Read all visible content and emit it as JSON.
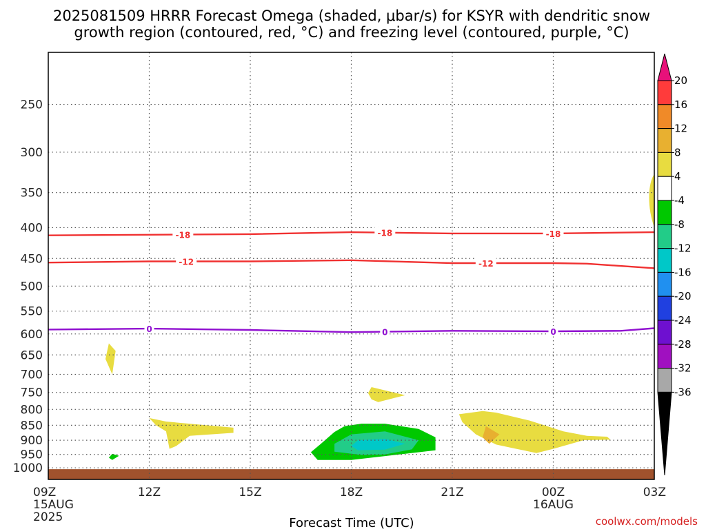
{
  "chart_data": {
    "type": "time-height contour",
    "title_line1": "2025081509 HRRR Forecast Omega (shaded, μbar/s) for KSYR with dendritic snow",
    "title_line2": "growth region (contoured, red, °C) and freezing level (contoured, purple, °C)",
    "xlabel": "Forecast Time (UTC)",
    "x_ticks": [
      {
        "hour": 0,
        "label": "09Z",
        "sub": [
          "15AUG",
          "2025"
        ]
      },
      {
        "hour": 3,
        "label": "12Z",
        "sub": []
      },
      {
        "hour": 6,
        "label": "15Z",
        "sub": []
      },
      {
        "hour": 9,
        "label": "18Z",
        "sub": []
      },
      {
        "hour": 12,
        "label": "21Z",
        "sub": []
      },
      {
        "hour": 15,
        "label": "00Z",
        "sub": [
          "16AUG"
        ]
      },
      {
        "hour": 18,
        "label": "03Z",
        "sub": []
      }
    ],
    "y_ticks": [
      250,
      300,
      350,
      400,
      450,
      500,
      550,
      600,
      650,
      700,
      750,
      800,
      850,
      900,
      950,
      1000
    ],
    "y_axis_log": true,
    "grid": true,
    "colorbar": {
      "labels": [
        "20",
        "16",
        "12",
        "8",
        "4",
        "-4",
        "-8",
        "-12",
        "-16",
        "-20",
        "-24",
        "-28",
        "-32",
        "-36"
      ],
      "colors": [
        "#ff3b3b",
        "#f08a28",
        "#e8b030",
        "#e8dc40",
        "#ffffff",
        "#00c800",
        "#22cc88",
        "#00c8c8",
        "#2090f0",
        "#2040e0",
        "#6e10d0",
        "#a010c0",
        "#a8a8a8"
      ],
      "top_color": "#e8117a",
      "bottom_color": "#000000"
    },
    "contours": [
      {
        "name": "-18",
        "color": "#f03030",
        "points": [
          [
            0,
            412
          ],
          [
            3,
            411
          ],
          [
            6,
            410
          ],
          [
            9,
            407
          ],
          [
            12,
            409
          ],
          [
            15,
            409
          ],
          [
            18,
            407
          ]
        ],
        "labels": [
          [
            4.0,
            412
          ],
          [
            10.0,
            407
          ],
          [
            15.0,
            409
          ]
        ]
      },
      {
        "name": "-12",
        "color": "#f03030",
        "points": [
          [
            0,
            457
          ],
          [
            3,
            455
          ],
          [
            6,
            455
          ],
          [
            9,
            453
          ],
          [
            12,
            458
          ],
          [
            15,
            458
          ],
          [
            16,
            459
          ],
          [
            18,
            467
          ]
        ],
        "labels": [
          [
            4.1,
            455
          ],
          [
            13.0,
            458
          ]
        ]
      },
      {
        "name": "0",
        "color": "#9010d0",
        "points": [
          [
            0,
            590
          ],
          [
            3,
            588
          ],
          [
            6,
            591
          ],
          [
            9,
            596
          ],
          [
            12,
            593
          ],
          [
            15,
            594
          ],
          [
            17,
            593
          ],
          [
            18,
            587
          ]
        ],
        "labels": [
          [
            3.0,
            588
          ],
          [
            10.0,
            596
          ],
          [
            15.0,
            594
          ]
        ]
      }
    ],
    "regions": [
      {
        "value": 6,
        "points": [
          [
            1.8,
            622
          ],
          [
            2.0,
            640
          ],
          [
            1.9,
            700
          ],
          [
            1.7,
            660
          ],
          [
            1.8,
            622
          ]
        ]
      },
      {
        "value": 6,
        "points": [
          [
            3.0,
            827
          ],
          [
            3.5,
            838
          ],
          [
            5.5,
            858
          ],
          [
            5.5,
            875
          ],
          [
            4.2,
            885
          ],
          [
            3.8,
            920
          ],
          [
            3.6,
            930
          ],
          [
            3.5,
            870
          ],
          [
            3.2,
            850
          ],
          [
            3.0,
            827
          ]
        ]
      },
      {
        "value": 6,
        "points": [
          [
            9.6,
            735
          ],
          [
            10.6,
            758
          ],
          [
            9.8,
            778
          ],
          [
            9.6,
            770
          ],
          [
            9.5,
            752
          ],
          [
            9.6,
            735
          ]
        ]
      },
      {
        "value": 6,
        "points": [
          [
            12.2,
            815
          ],
          [
            12.9,
            805
          ],
          [
            13.3,
            810
          ],
          [
            14.3,
            835
          ],
          [
            15.3,
            870
          ],
          [
            16.0,
            885
          ],
          [
            16.6,
            888
          ],
          [
            16.7,
            898
          ],
          [
            15.9,
            900
          ],
          [
            15.0,
            930
          ],
          [
            14.5,
            945
          ],
          [
            13.9,
            930
          ],
          [
            13.3,
            915
          ],
          [
            12.7,
            880
          ],
          [
            12.3,
            840
          ],
          [
            12.2,
            815
          ]
        ]
      },
      {
        "value": 10,
        "points": [
          [
            13.0,
            853
          ],
          [
            13.4,
            880
          ],
          [
            13.1,
            912
          ],
          [
            12.9,
            890
          ],
          [
            13.0,
            853
          ]
        ]
      },
      {
        "value": -6,
        "points": [
          [
            1.9,
            948
          ],
          [
            2.1,
            955
          ],
          [
            1.9,
            970
          ],
          [
            1.8,
            962
          ],
          [
            1.9,
            948
          ]
        ]
      },
      {
        "value": -6,
        "points": [
          [
            8.8,
            853
          ],
          [
            9.3,
            845
          ],
          [
            10.0,
            845
          ],
          [
            11.0,
            862
          ],
          [
            11.5,
            890
          ],
          [
            11.5,
            935
          ],
          [
            9.0,
            970
          ],
          [
            8.0,
            970
          ],
          [
            7.8,
            942
          ],
          [
            8.1,
            912
          ],
          [
            8.5,
            872
          ],
          [
            8.8,
            853
          ]
        ]
      },
      {
        "value": -10,
        "points": [
          [
            9.0,
            880
          ],
          [
            10.0,
            870
          ],
          [
            11.0,
            900
          ],
          [
            10.8,
            932
          ],
          [
            10.0,
            950
          ],
          [
            9.3,
            952
          ],
          [
            8.5,
            940
          ],
          [
            8.5,
            912
          ],
          [
            9.0,
            880
          ]
        ]
      },
      {
        "value": -14,
        "points": [
          [
            9.2,
            900
          ],
          [
            10.0,
            895
          ],
          [
            10.6,
            912
          ],
          [
            10.0,
            933
          ],
          [
            9.2,
            935
          ],
          [
            9.0,
            920
          ],
          [
            9.2,
            900
          ]
        ]
      }
    ],
    "ground_level": 1005,
    "ground_color": "#a0522d"
  },
  "credit": "coolwx.com/models"
}
